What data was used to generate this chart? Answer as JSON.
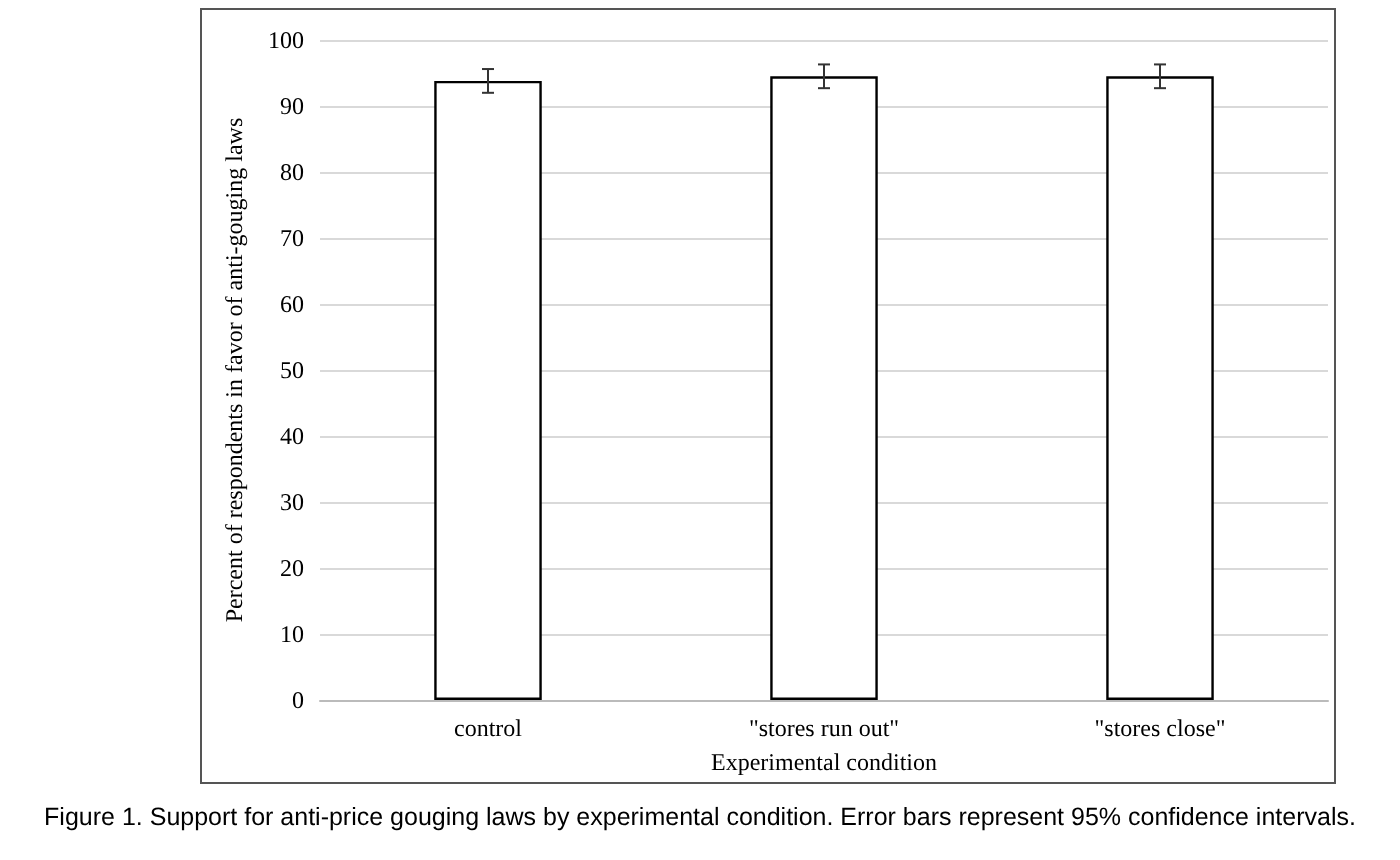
{
  "chart_data": {
    "type": "bar",
    "categories": [
      "control",
      "\"stores run out\"",
      "\"stores close\""
    ],
    "values": [
      93.8,
      94.5,
      94.5
    ],
    "errors": [
      1.8,
      1.8,
      1.8
    ],
    "color": "#ffffff",
    "xlabel": "Experimental condition",
    "ylabel": "Percent of respondents in favor of anti-gouging laws",
    "ylim": [
      0,
      100
    ],
    "yticks": [
      0,
      10,
      20,
      30,
      40,
      50,
      60,
      70,
      80,
      90,
      100
    ],
    "grid": "y",
    "annotations": [
      "Figure 1. Support for anti-price gouging laws by experimental condition. Error bars represent 95% confidence intervals."
    ]
  }
}
